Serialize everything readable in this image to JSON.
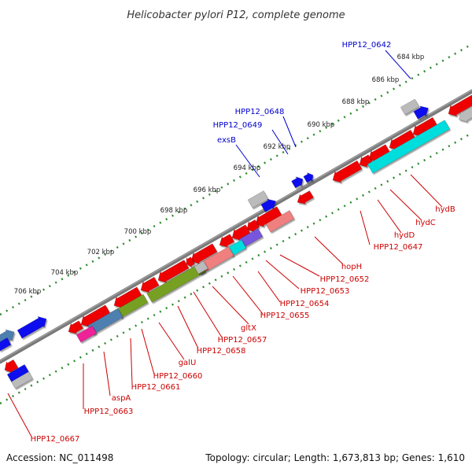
{
  "title": "Helicobacter pylori P12, complete genome",
  "footer": {
    "accession": "Accession: NC_011498",
    "summary": "Topology: circular; Length: 1,673,813 bp; Genes: 1,610"
  },
  "colors": {
    "background": "#ffffff",
    "backbone": "#7a7a7a",
    "dots": "#2e8b2e",
    "label_forward": "#0000cc",
    "label_reverse": "#cc0000",
    "feature_red": "#ee0000",
    "feature_blue": "#1111ee",
    "feature_gray": "#bbbbbb",
    "feature_cyan": "#00dddd",
    "feature_olive": "#77a022",
    "feature_slateblue": "#4d7fb0",
    "feature_lavender": "#7755dd",
    "feature_pink": "#f08080",
    "feature_magenta": "#ee2299"
  },
  "ticks": [
    {
      "label": "684 kbp"
    },
    {
      "label": "686 kbp"
    },
    {
      "label": "688 kbp"
    },
    {
      "label": "690 kbp"
    },
    {
      "label": "692 kbp"
    },
    {
      "label": "694 kbp"
    },
    {
      "label": "696 kbp"
    },
    {
      "label": "698 kbp"
    },
    {
      "label": "700 kbp"
    },
    {
      "label": "702 kbp"
    },
    {
      "label": "704 kbp"
    },
    {
      "label": "706 kbp"
    }
  ],
  "labels_forward": [
    {
      "text": "HPP12_0642"
    },
    {
      "text": "HPP12_0648"
    },
    {
      "text": "HPP12_0649"
    },
    {
      "text": "exsB"
    }
  ],
  "labels_reverse": [
    {
      "text": "hydB"
    },
    {
      "text": "hydC"
    },
    {
      "text": "hydD"
    },
    {
      "text": "HPP12_0647"
    },
    {
      "text": "hopH"
    },
    {
      "text": "HPP12_0652"
    },
    {
      "text": "HPP12_0653"
    },
    {
      "text": "HPP12_0654"
    },
    {
      "text": "HPP12_0655"
    },
    {
      "text": "gltX"
    },
    {
      "text": "HPP12_0657"
    },
    {
      "text": "HPP12_0658"
    },
    {
      "text": "galU"
    },
    {
      "text": "HPP12_0660"
    },
    {
      "text": "HPP12_0661"
    },
    {
      "text": "aspA"
    },
    {
      "text": "HPP12_0663"
    },
    {
      "text": "HPP12_0667"
    }
  ]
}
